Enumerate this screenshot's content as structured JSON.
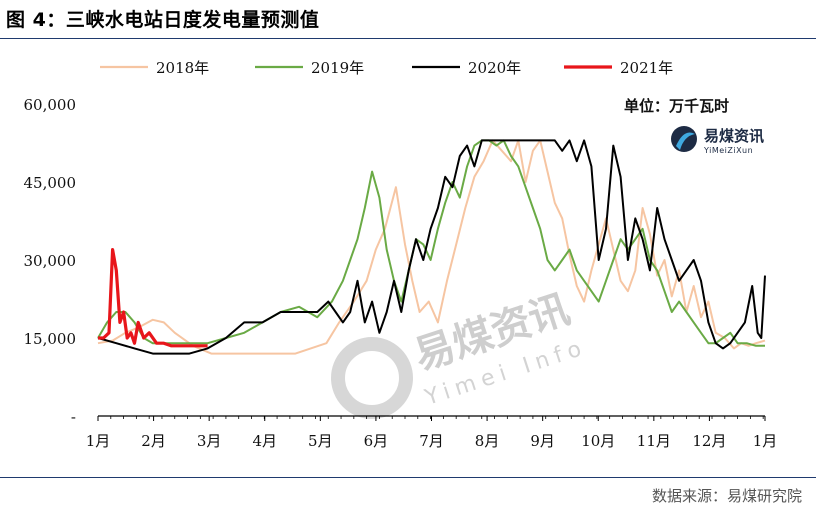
{
  "figure_title": "图 4：三峡水电站日度发电量预测值",
  "source": "数据来源：易煤研究院",
  "colors": {
    "2018年": "#f6c5a2",
    "2019年": "#6aaa45",
    "2020年": "#000000",
    "2021年": "#e8161b",
    "rule": "#1f3a6e"
  },
  "logo": {
    "name": "易煤资讯",
    "sub": "YiMeiZiXun"
  },
  "watermark": {
    "name": "易煤资讯",
    "sub": "Yimei Info"
  },
  "chart_data": {
    "type": "line",
    "title": "",
    "unit_label": "单位：万千瓦时",
    "xlabel": "",
    "ylabel": "",
    "x_tick_labels": [
      "1月",
      "2月",
      "3月",
      "4月",
      "5月",
      "6月",
      "7月",
      "8月",
      "9月",
      "10月",
      "11月",
      "12月",
      "1月"
    ],
    "y_tick_labels": [
      "-",
      "15,000",
      "30,000",
      "45,000",
      "60,000"
    ],
    "y_ticks": [
      0,
      15000,
      30000,
      45000,
      60000
    ],
    "xlim_days": [
      0,
      365
    ],
    "ylim": [
      0,
      60000
    ],
    "grid": false,
    "legend_position": "top",
    "series": [
      {
        "name": "2018年",
        "x": [
          0,
          8,
          15,
          22,
          30,
          36,
          42,
          52,
          62,
          75,
          92,
          108,
          125,
          132,
          140,
          147,
          152,
          157,
          163,
          168,
          172,
          176,
          181,
          186,
          191,
          196,
          201,
          206,
          211,
          216,
          221,
          226,
          230,
          234,
          238,
          242,
          246,
          250,
          254,
          258,
          262,
          266,
          270,
          274,
          278,
          282,
          286,
          290,
          294,
          298,
          302,
          306,
          310,
          314,
          318,
          322,
          326,
          330,
          334,
          338,
          343,
          348,
          352,
          356,
          360,
          365
        ],
        "y": [
          14000,
          14500,
          16000,
          17000,
          18500,
          18000,
          16000,
          13500,
          12000,
          12000,
          12000,
          12000,
          14000,
          18000,
          22000,
          26000,
          32000,
          36000,
          44000,
          33000,
          26000,
          20000,
          22000,
          18000,
          26000,
          33000,
          40000,
          46000,
          49000,
          53000,
          51000,
          49000,
          53000,
          45000,
          51000,
          53000,
          47000,
          41000,
          38000,
          31000,
          25000,
          22000,
          28000,
          33000,
          38000,
          32000,
          26000,
          24000,
          28000,
          40000,
          35000,
          27000,
          30000,
          23000,
          28000,
          20000,
          25000,
          19000,
          22000,
          16000,
          15000,
          13000,
          14000,
          13500,
          14000,
          14500
        ]
      },
      {
        "name": "2019年",
        "x": [
          0,
          5,
          10,
          15,
          20,
          25,
          30,
          40,
          50,
          60,
          70,
          80,
          90,
          100,
          110,
          120,
          128,
          134,
          138,
          142,
          146,
          150,
          154,
          158,
          162,
          166,
          170,
          174,
          178,
          182,
          186,
          190,
          194,
          198,
          202,
          206,
          210,
          214,
          218,
          222,
          226,
          230,
          234,
          238,
          242,
          246,
          250,
          254,
          258,
          262,
          266,
          270,
          274,
          278,
          282,
          286,
          290,
          294,
          298,
          302,
          306,
          310,
          314,
          318,
          322,
          326,
          330,
          334,
          338,
          342,
          346,
          350,
          355,
          360,
          365
        ],
        "y": [
          15000,
          18000,
          20000,
          20000,
          18000,
          15000,
          14000,
          14000,
          14000,
          14000,
          15000,
          16000,
          18000,
          20000,
          21000,
          19000,
          22000,
          26000,
          30000,
          34000,
          40000,
          47000,
          42000,
          32000,
          26000,
          22000,
          28000,
          34000,
          33000,
          30000,
          36000,
          41000,
          45000,
          42000,
          48000,
          52000,
          53000,
          53000,
          52000,
          53000,
          50000,
          48000,
          44000,
          40000,
          36000,
          30000,
          28000,
          30000,
          32000,
          28000,
          26000,
          24000,
          22000,
          26000,
          30000,
          34000,
          32000,
          34000,
          36000,
          30000,
          28000,
          24000,
          20000,
          22000,
          20000,
          18000,
          16000,
          14000,
          14000,
          15000,
          16000,
          14000,
          14000,
          13500,
          13500
        ]
      },
      {
        "name": "2020年",
        "x": [
          0,
          10,
          20,
          30,
          40,
          50,
          60,
          70,
          80,
          90,
          100,
          110,
          120,
          126,
          130,
          134,
          138,
          142,
          146,
          150,
          154,
          158,
          162,
          166,
          170,
          174,
          178,
          182,
          186,
          190,
          194,
          198,
          202,
          206,
          210,
          214,
          218,
          222,
          226,
          230,
          234,
          238,
          242,
          246,
          250,
          254,
          258,
          262,
          266,
          270,
          274,
          278,
          282,
          286,
          290,
          294,
          298,
          302,
          306,
          310,
          314,
          318,
          322,
          326,
          330,
          334,
          338,
          342,
          346,
          350,
          354,
          358,
          361,
          363,
          365
        ],
        "y": [
          15000,
          14000,
          13000,
          12000,
          12000,
          12000,
          13000,
          15000,
          18000,
          18000,
          20000,
          20000,
          20000,
          22000,
          20000,
          18000,
          20000,
          26000,
          18000,
          22000,
          16000,
          20000,
          26000,
          20000,
          28000,
          34000,
          30000,
          36000,
          40000,
          46000,
          44000,
          50000,
          52000,
          48000,
          53000,
          53000,
          53000,
          53000,
          53000,
          53000,
          53000,
          53000,
          53000,
          53000,
          53000,
          51000,
          53000,
          49000,
          53000,
          48000,
          30000,
          36000,
          52000,
          46000,
          30000,
          38000,
          34000,
          28000,
          40000,
          34000,
          30000,
          26000,
          28000,
          30000,
          26000,
          18000,
          14000,
          13000,
          14000,
          16000,
          18000,
          25000,
          16000,
          15000,
          27000
        ]
      },
      {
        "name": "2021年",
        "x": [
          0,
          3,
          6,
          8,
          10,
          12,
          14,
          16,
          18,
          20,
          22,
          25,
          28,
          32,
          36,
          40,
          44,
          48,
          52,
          56,
          60
        ],
        "y": [
          15000,
          15000,
          16000,
          32000,
          28000,
          18000,
          20000,
          15000,
          16000,
          14000,
          18000,
          15000,
          16000,
          14000,
          14000,
          13500,
          13500,
          13500,
          13500,
          13500,
          13500
        ]
      }
    ]
  }
}
